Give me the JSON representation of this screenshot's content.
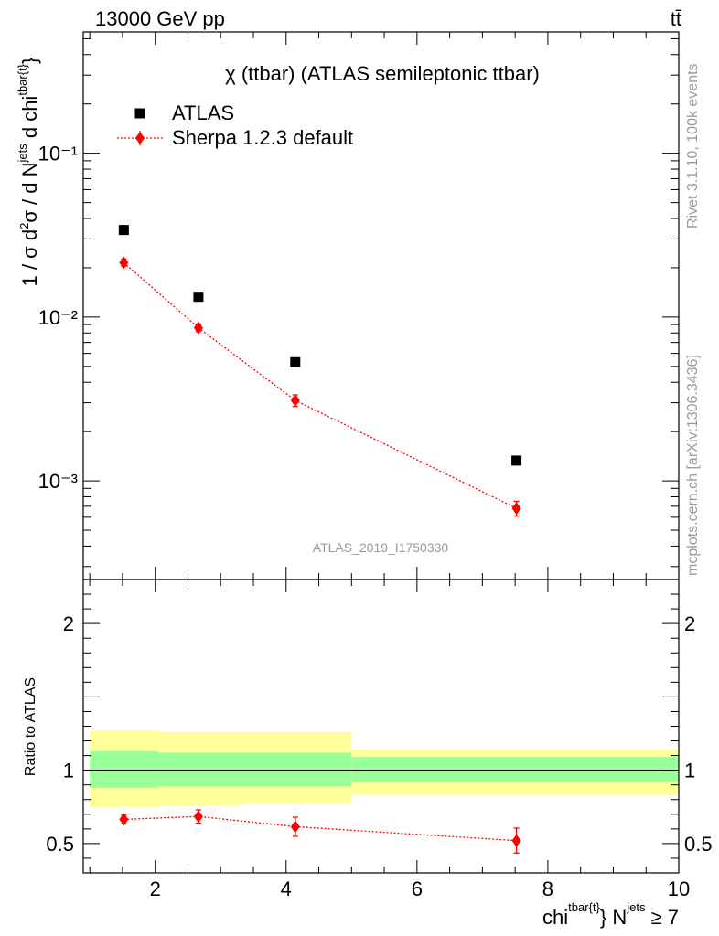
{
  "header": {
    "left": "13000 GeV pp",
    "right": "tt̄"
  },
  "side_labels": {
    "rivet": "Rivet 3.1.10,  100k events",
    "mcplots": "mcplots.cern.ch [arXiv:1306.3436]"
  },
  "watermark": "ATLAS_2019_I1750330",
  "chart_data": [
    {
      "type": "scatter",
      "title": "χ (ttbar) (ATLAS semileptonic ttbar)",
      "ylabel": "1 / σ d²σ / d N^jets d chi^tbar{t}",
      "yscale": "log",
      "xlim": [
        0.9,
        10.0
      ],
      "ylim": [
        0.00025,
        0.55
      ],
      "legend_position": "top-left",
      "y_ticks": [
        {
          "value": 0.1,
          "label": "10⁻¹"
        },
        {
          "value": 0.01,
          "label": "10⁻²"
        },
        {
          "value": 0.001,
          "label": "10⁻³"
        }
      ],
      "series": [
        {
          "name": "ATLAS",
          "marker": "square",
          "color": "#000000",
          "x": [
            1.52,
            2.66,
            4.14,
            7.52
          ],
          "y": [
            0.034,
            0.0133,
            0.0053,
            0.00133
          ]
        },
        {
          "name": "Sherpa 1.2.3 default",
          "marker": "diamond",
          "line": "dotted",
          "color": "#ff0000",
          "x": [
            1.52,
            2.66,
            4.14,
            7.52
          ],
          "y": [
            0.0215,
            0.0086,
            0.0031,
            0.00068
          ],
          "yerr_low": [
            0.0011,
            0.00045,
            0.00025,
            7e-05
          ],
          "yerr_high": [
            0.0011,
            0.00045,
            0.00025,
            7e-05
          ]
        }
      ]
    },
    {
      "type": "scatter",
      "ylabel": "Ratio to ATLAS",
      "xlabel": "chi^tbar{t} N^jets ≥ 7",
      "xlim": [
        0.9,
        10.0
      ],
      "ylim": [
        0.3,
        2.3
      ],
      "x_ticks": [
        2,
        4,
        6,
        8,
        10
      ],
      "y_ticks": [
        {
          "value": 0.5,
          "label": "0.5"
        },
        {
          "value": 1,
          "label": "1"
        },
        {
          "value": 2,
          "label": "2"
        }
      ],
      "uncertainty_bands": [
        {
          "x0": 1.0,
          "x1": 2.05,
          "inner": [
            0.88,
            1.13
          ],
          "outer": [
            0.75,
            1.27
          ]
        },
        {
          "x0": 2.05,
          "x1": 3.3,
          "inner": [
            0.89,
            1.12
          ],
          "outer": [
            0.76,
            1.26
          ]
        },
        {
          "x0": 3.3,
          "x1": 5.0,
          "inner": [
            0.89,
            1.12
          ],
          "outer": [
            0.77,
            1.26
          ]
        },
        {
          "x0": 5.0,
          "x1": 10.0,
          "inner": [
            0.92,
            1.09
          ],
          "outer": [
            0.83,
            1.14
          ]
        }
      ],
      "band_colors": {
        "inner": "#99ff99",
        "outer": "#ffff99"
      },
      "series": [
        {
          "name": "Sherpa 1.2.3 default",
          "marker": "diamond",
          "line": "dotted",
          "color": "#ff0000",
          "x": [
            1.52,
            2.66,
            4.14,
            7.52
          ],
          "y": [
            0.665,
            0.685,
            0.615,
            0.52
          ],
          "yerr_low": [
            0.03,
            0.045,
            0.065,
            0.085
          ],
          "yerr_high": [
            0.03,
            0.045,
            0.065,
            0.085
          ]
        }
      ]
    }
  ]
}
